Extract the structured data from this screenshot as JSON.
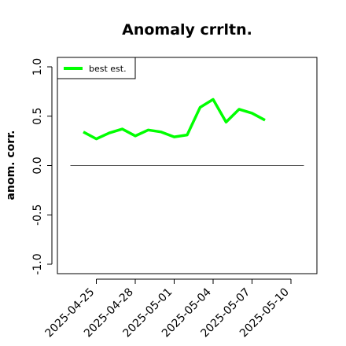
{
  "chart_data": {
    "type": "line",
    "title": "Anomaly crrltn.",
    "xlabel": "",
    "ylabel": "anom. corr.",
    "ylim": [
      -1.0,
      1.0
    ],
    "xlim": [
      "2025-04-22",
      "2025-05-12"
    ],
    "x_ticks": [
      "2025-04-25",
      "2025-04-28",
      "2025-05-01",
      "2025-05-04",
      "2025-05-07",
      "2025-05-10"
    ],
    "y_ticks": [
      "-1.0",
      "-0.5",
      "0.0",
      "0.5",
      "1.0"
    ],
    "reference_line": {
      "y": 0.0,
      "x_start": "2025-04-23",
      "x_end": "2025-05-11"
    },
    "legend": {
      "placement": "top-left"
    },
    "grid": false,
    "series": [
      {
        "name": "best est.",
        "color": "#00ff00",
        "x": [
          "2025-04-24",
          "2025-04-25",
          "2025-04-26",
          "2025-04-27",
          "2025-04-28",
          "2025-04-29",
          "2025-04-30",
          "2025-05-01",
          "2025-05-02",
          "2025-05-03",
          "2025-05-04",
          "2025-05-05",
          "2025-05-06",
          "2025-05-07",
          "2025-05-08"
        ],
        "values": [
          0.34,
          0.27,
          0.33,
          0.37,
          0.3,
          0.36,
          0.34,
          0.29,
          0.31,
          0.59,
          0.67,
          0.44,
          0.57,
          0.53,
          0.46
        ]
      }
    ]
  }
}
